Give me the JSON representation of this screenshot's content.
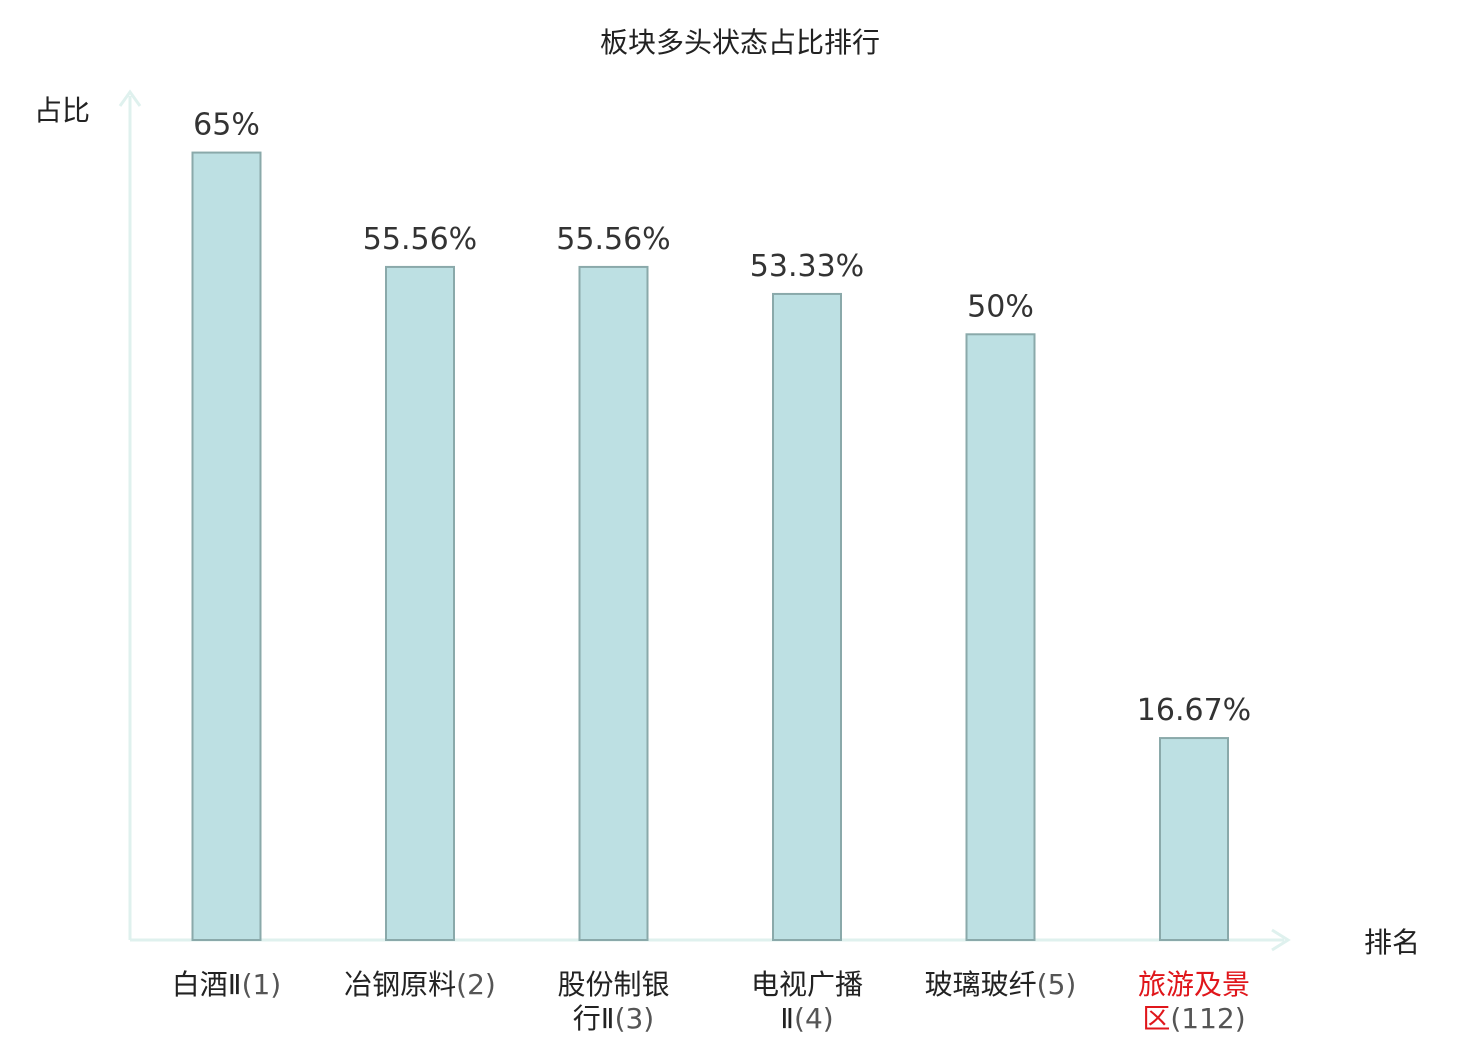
{
  "chart_data": {
    "type": "bar",
    "title": "板块多头状态占比排行",
    "ylabel": "占比",
    "xlabel": "排名",
    "ylim": [
      0,
      70
    ],
    "grid": false,
    "categories": [
      {
        "lines": [
          [
            "白酒Ⅱ",
            "(1)"
          ]
        ],
        "highlight": false
      },
      {
        "lines": [
          [
            "冶钢原料",
            "(2)"
          ]
        ],
        "highlight": false
      },
      {
        "lines": [
          [
            "股份制银",
            ""
          ],
          [
            "行Ⅱ",
            "(3)"
          ]
        ],
        "highlight": false
      },
      {
        "lines": [
          [
            "电视广播",
            ""
          ],
          [
            "Ⅱ",
            "(4)"
          ]
        ],
        "highlight": false
      },
      {
        "lines": [
          [
            "玻璃玻纤",
            "(5)"
          ]
        ],
        "highlight": false
      },
      {
        "lines": [
          [
            "旅游及景",
            ""
          ],
          [
            "区",
            "(112)"
          ]
        ],
        "highlight": true
      }
    ],
    "values": [
      65,
      55.56,
      55.56,
      53.33,
      50,
      16.67
    ],
    "value_labels": [
      "65%",
      "55.56%",
      "55.56%",
      "53.33%",
      "50%",
      "16.67%"
    ],
    "colors": {
      "bar_fill": "#bde0e3",
      "bar_stroke": "#8aa9aa",
      "axis": "#dff1ee",
      "highlight": "#e0161b"
    }
  }
}
